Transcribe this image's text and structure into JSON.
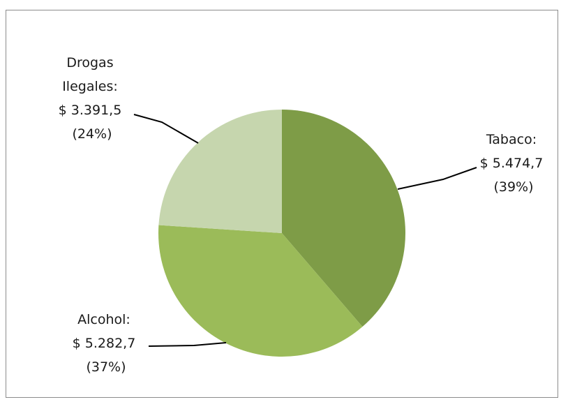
{
  "chart_data": {
    "type": "pie",
    "slices": [
      {
        "name": "Tabaco",
        "value": 5474.7,
        "percent": 39,
        "color": "#7e9c47",
        "label_lines": [
          "Tabaco:",
          "$ 5.474,7",
          "(39%)"
        ]
      },
      {
        "name": "Alcohol",
        "value": 5282.7,
        "percent": 37,
        "color": "#9bbb59",
        "label_lines": [
          "Alcohol:",
          "$ 5.282,7",
          "(37%)"
        ]
      },
      {
        "name": "Drogas Ilegales",
        "value": 3391.5,
        "percent": 24,
        "color": "#c6d6ae",
        "label_lines": [
          "Drogas",
          "Ilegales:",
          "$ 3.391,5",
          "(24%)"
        ]
      }
    ],
    "start": "12 o'clock",
    "direction": "clockwise",
    "legend": "none"
  }
}
